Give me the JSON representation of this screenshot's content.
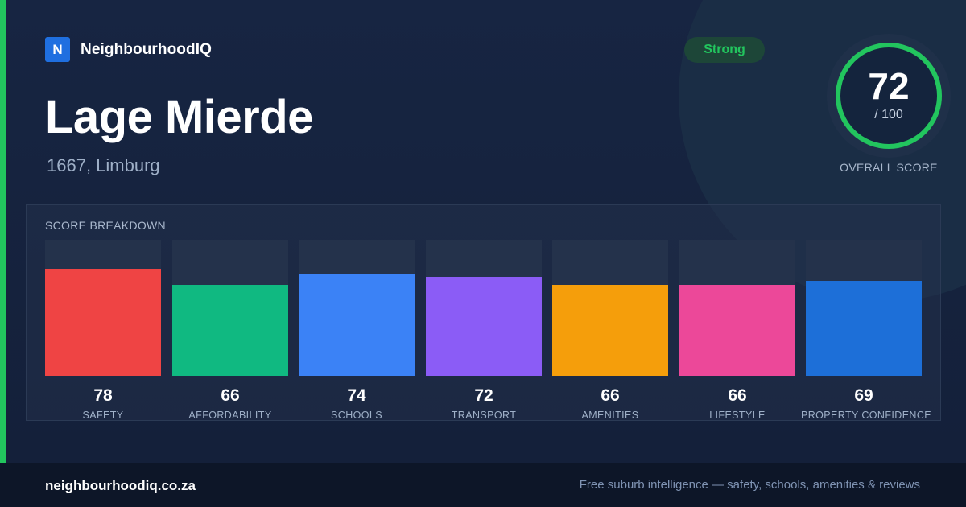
{
  "brand": {
    "logo_letter": "N",
    "name": "NeighbourhoodIQ"
  },
  "suburb": {
    "name": "Lage Mierde",
    "location": "1667, Limburg"
  },
  "badge": {
    "label": "Strong",
    "color": "#22c55e"
  },
  "overall": {
    "score": "72",
    "max_label": "/ 100",
    "label": "OVERALL SCORE",
    "fraction": 0.72,
    "ring_color": "#22c55e"
  },
  "breakdown": {
    "title": "SCORE BREAKDOWN",
    "items": [
      {
        "label": "SAFETY",
        "value": "78",
        "score": 78,
        "color": "#ef4444"
      },
      {
        "label": "AFFORDABILITY",
        "value": "66",
        "score": 66,
        "color": "#10b981"
      },
      {
        "label": "SCHOOLS",
        "value": "74",
        "score": 74,
        "color": "#3b82f6"
      },
      {
        "label": "TRANSPORT",
        "value": "72",
        "score": 72,
        "color": "#8b5cf6"
      },
      {
        "label": "AMENITIES",
        "value": "66",
        "score": 66,
        "color": "#f59e0b"
      },
      {
        "label": "LIFESTYLE",
        "value": "66",
        "score": 66,
        "color": "#ec4899"
      },
      {
        "label": "PROPERTY CONFIDENCE",
        "value": "69",
        "score": 69,
        "color": "#1d6fd8"
      }
    ]
  },
  "footer": {
    "url": "neighbourhoodiq.co.za",
    "tagline": "Free suburb intelligence — safety, schools, amenities & reviews"
  }
}
